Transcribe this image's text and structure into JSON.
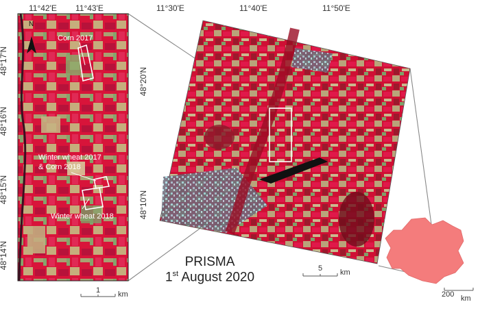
{
  "inset": {
    "lon_labels": [
      "11°42'E",
      "11°43'E"
    ],
    "lat_labels": [
      "48°17'N",
      "48°16'N",
      "48°15'N",
      "48°14'N"
    ],
    "north": "N",
    "fields": [
      {
        "label": "Corn 2017"
      },
      {
        "label": "Winter wheat 2017"
      },
      {
        "label": "& Corn 2018"
      },
      {
        "label": "Winter wheat 2018"
      }
    ],
    "scalebar": {
      "value": "1",
      "unit": "km"
    }
  },
  "main": {
    "lon_labels": [
      "11°30'E",
      "11°40'E",
      "11°50'E"
    ],
    "lat_labels": [
      "48°20'N",
      "48°10'N"
    ],
    "title_line1": "PRISMA",
    "title_line2_pre": "1",
    "title_line2_sup": "st",
    "title_line2_post": " August 2020",
    "scalebar": {
      "value": "5",
      "unit": "km"
    }
  },
  "country": {
    "scalebar": {
      "value": "200",
      "unit": "km"
    },
    "fill": "#f47c7c"
  },
  "colors": {
    "vegetation": "#d8143a",
    "soil": "#b9a47a",
    "urban": "#8fd3dc",
    "water": "#111111"
  }
}
